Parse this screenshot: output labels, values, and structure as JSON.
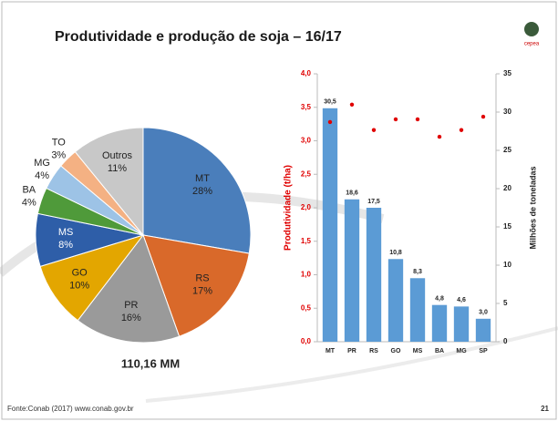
{
  "slide": {
    "title": "Produtividade e produção de soja – 16/17",
    "logo": "cepea",
    "source": "Fonte:Conab (2017) www.conab.gov.br",
    "page": "21"
  },
  "chart_data": [
    {
      "type": "pie",
      "categories": [
        "MT",
        "RS",
        "PR",
        "GO",
        "MS",
        "BA",
        "MG",
        "TO",
        "Outros"
      ],
      "values": [
        28,
        17,
        16,
        10,
        8,
        4,
        4,
        3,
        11
      ],
      "value_labels": [
        "28%",
        "17%",
        "16%",
        "10%",
        "8%",
        "4%",
        "4%",
        "3%",
        "11%"
      ],
      "colors": [
        "#4a7ebb",
        "#d9692a",
        "#9a9a9a",
        "#e3a600",
        "#2e5ea8",
        "#4f9a3a",
        "#9dc3e6",
        "#f4b183",
        "#c8c8c8"
      ],
      "annotation": "110,16 MM"
    },
    {
      "type": "combo",
      "categories": [
        "MT",
        "PR",
        "RS",
        "GO",
        "MS",
        "BA",
        "MG",
        "SP"
      ],
      "ylabel": "Produtividade (t/ha)",
      "y2label": "Milhões de toneladas",
      "ylim": [
        0,
        4
      ],
      "yticks": [
        {
          "value": 0,
          "label": "0,0"
        },
        {
          "value": 0.5,
          "label": "0,5"
        },
        {
          "value": 1,
          "label": "1,0"
        },
        {
          "value": 1.5,
          "label": "1,5"
        },
        {
          "value": 2,
          "label": "2,0"
        },
        {
          "value": 2.5,
          "label": "2,5"
        },
        {
          "value": 3,
          "label": "3,0"
        },
        {
          "value": 3.5,
          "label": "3,5"
        },
        {
          "value": 4,
          "label": "4,0"
        }
      ],
      "y2lim": [
        0,
        35
      ],
      "y2ticks": [
        0,
        5,
        10,
        15,
        20,
        25,
        30,
        35
      ],
      "series": [
        {
          "type": "bar",
          "axis": "y2",
          "color": "#5b9bd5",
          "values": [
            30.5,
            18.6,
            17.5,
            10.8,
            8.3,
            4.8,
            4.6,
            3.0
          ],
          "value_labels": [
            "30,5",
            "18,6",
            "17,5",
            "10,8",
            "8,3",
            "4,8",
            "4,6",
            "3,0"
          ]
        },
        {
          "type": "scatter",
          "axis": "y",
          "color": "#e00000",
          "values": [
            3.28,
            3.54,
            3.16,
            3.32,
            3.32,
            3.06,
            3.16,
            3.36
          ]
        }
      ]
    }
  ]
}
